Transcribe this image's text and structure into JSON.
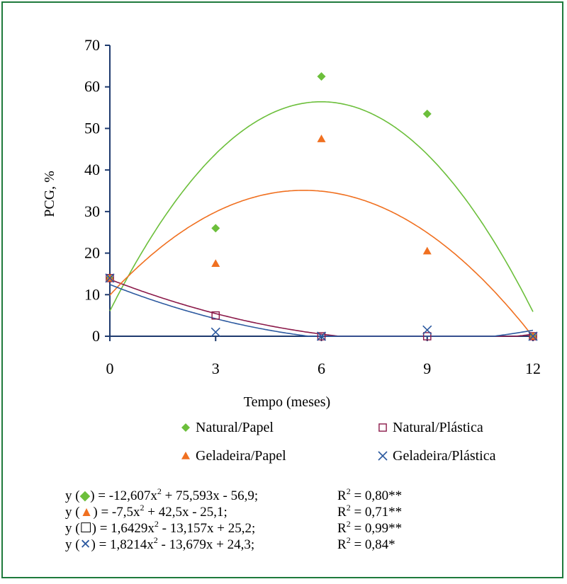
{
  "chart_data": {
    "type": "scatter",
    "xlabel": "Tempo (meses)",
    "ylabel": "PCG, %",
    "x": [
      0,
      3,
      6,
      9,
      12
    ],
    "xlim": [
      0,
      12
    ],
    "ylim": [
      0,
      70
    ],
    "xticks": [
      0,
      3,
      6,
      9,
      12
    ],
    "yticks": [
      0,
      10,
      20,
      30,
      40,
      50,
      60,
      70
    ],
    "grid": false,
    "legend_position": "below-plot",
    "series": [
      {
        "name": "Natural/Papel",
        "marker": "diamond",
        "color": "#6cbf3b",
        "values": [
          14,
          26,
          62.5,
          53.5,
          0
        ],
        "fit": {
          "a": -12.607,
          "b": 75.593,
          "c": -56.9
        }
      },
      {
        "name": "Natural/Plástica",
        "marker": "open-square",
        "color": "#8b1a4a",
        "values": [
          14,
          5,
          0,
          0,
          0
        ],
        "fit": {
          "a": 1.6429,
          "b": -13.157,
          "c": 25.2
        }
      },
      {
        "name": "Geladeira/Papel",
        "marker": "triangle",
        "color": "#f07020",
        "values": [
          14,
          17.5,
          47.5,
          20.5,
          0
        ],
        "fit": {
          "a": -7.5,
          "b": 42.5,
          "c": -25.1
        }
      },
      {
        "name": "Geladeira/Plástica",
        "marker": "x",
        "color": "#2d5aa0",
        "values": [
          14,
          1,
          0,
          1.5,
          0
        ],
        "fit": {
          "a": 1.8214,
          "b": -13.679,
          "c": 24.3
        }
      }
    ],
    "equations": [
      {
        "prefix": "y (",
        "symbol": "◆",
        "symbol_color": "#6cbf3b",
        "rhs": ") =  -12,607x",
        "rest": " + 75,593x - 56,9;",
        "r2": " = 0,80**"
      },
      {
        "prefix": "y (",
        "symbol": "▲",
        "symbol_color": "#f07020",
        "rhs": ") =  -7,5x",
        "rest": " + 42,5x - 25,1;",
        "r2": " = 0,71**"
      },
      {
        "prefix": "y (",
        "symbol": "☐",
        "symbol_color": "#000000",
        "rhs": ") = 1,6429x",
        "rest": " - 13,157x + 25,2;",
        "r2": " = 0,99**"
      },
      {
        "prefix": "y (",
        "symbol": "✕",
        "symbol_color": "#2d5aa0",
        "rhs": ") = 1,8214x",
        "rest": " - 13,679x + 24,3;",
        "r2": " = 0,84*"
      }
    ],
    "superscript": "2",
    "r_label": "R"
  }
}
